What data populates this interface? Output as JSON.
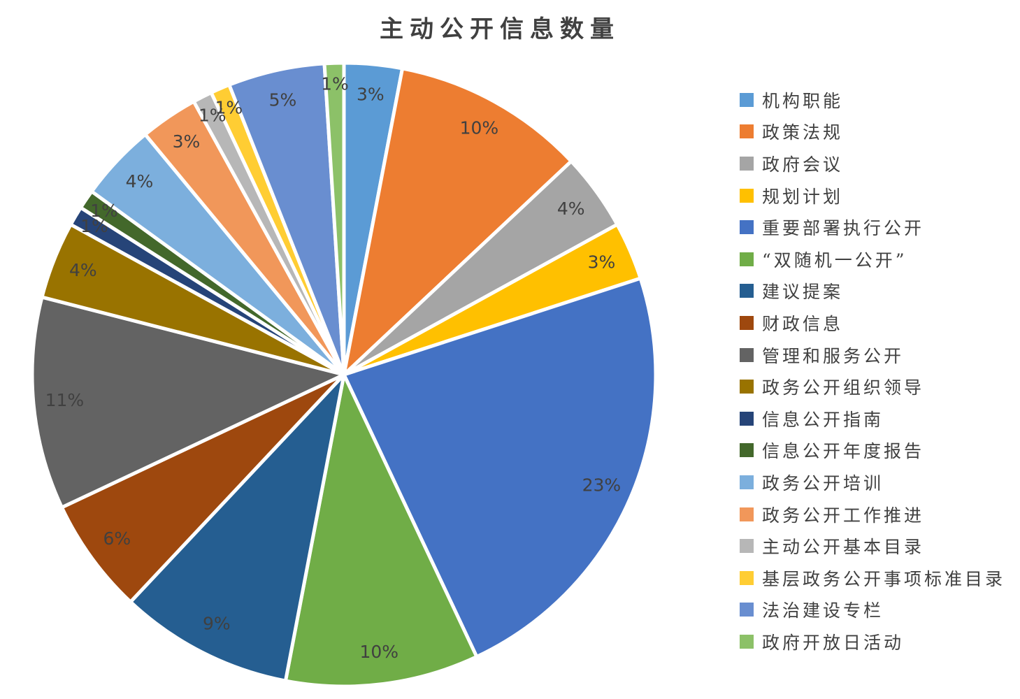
{
  "colors": {
    "background": "#FFFFFF",
    "slice_border": "#FFFFFF",
    "title_text": "#404040",
    "label_text": "#404040",
    "legend_text": "#404040"
  },
  "chart_data": {
    "type": "pie",
    "title": "主动公开信息数量",
    "legend_position": "right",
    "start_angle_deg": 0,
    "direction": "clockwise",
    "total": 100,
    "series": [
      {
        "name": "机构职能",
        "percent": 3,
        "display": "3%",
        "color": "#5B9BD5"
      },
      {
        "name": "政策法规",
        "percent": 10,
        "display": "10%",
        "color": "#ED7D31"
      },
      {
        "name": "政府会议",
        "percent": 4,
        "display": "4%",
        "color": "#A5A5A5"
      },
      {
        "name": "规划计划",
        "percent": 3,
        "display": "3%",
        "color": "#FFC000"
      },
      {
        "name": "重要部署执行公开",
        "percent": 23,
        "display": "23%",
        "color": "#4472C4"
      },
      {
        "name": "“双随机一公开”",
        "percent": 10,
        "display": "10%",
        "color": "#70AD47"
      },
      {
        "name": "建议提案",
        "percent": 9,
        "display": "9%",
        "color": "#255E91"
      },
      {
        "name": "财政信息",
        "percent": 6,
        "display": "6%",
        "color": "#9E480E"
      },
      {
        "name": "管理和服务公开",
        "percent": 11,
        "display": "11%",
        "color": "#636363"
      },
      {
        "name": "政务公开组织领导",
        "percent": 4,
        "display": "4%",
        "color": "#997300"
      },
      {
        "name": "信息公开指南",
        "percent": 1,
        "display": "1%",
        "color": "#264478"
      },
      {
        "name": "信息公开年度报告",
        "percent": 1,
        "display": "1%",
        "color": "#43682B"
      },
      {
        "name": "政务公开培训",
        "percent": 4,
        "display": "4%",
        "color": "#7CAFDD"
      },
      {
        "name": "政务公开工作推进",
        "percent": 3,
        "display": "3%",
        "color": "#F1975A"
      },
      {
        "name": "主动公开基本目录",
        "percent": 1,
        "display": "1%",
        "color": "#B7B7B7"
      },
      {
        "name": "基层政务公开事项标准目录",
        "percent": 1,
        "display": "1%",
        "color": "#FFCD33"
      },
      {
        "name": "法治建设专栏",
        "percent": 5,
        "display": "5%",
        "color": "#698ED0"
      },
      {
        "name": "政府开放日活动",
        "percent": 1,
        "display": "1%",
        "color": "#8CC168"
      }
    ]
  }
}
